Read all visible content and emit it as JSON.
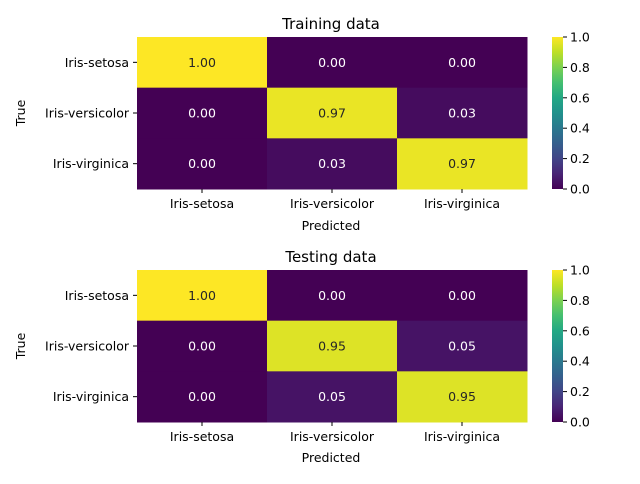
{
  "chart_data": [
    {
      "type": "heatmap",
      "title": "Training data",
      "xlabel": "Predicted",
      "ylabel": "True",
      "x_categories": [
        "Iris-setosa",
        "Iris-versicolor",
        "Iris-virginica"
      ],
      "y_categories": [
        "Iris-setosa",
        "Iris-versicolor",
        "Iris-virginica"
      ],
      "values": [
        [
          1.0,
          0.0,
          0.0
        ],
        [
          0.0,
          0.97,
          0.03
        ],
        [
          0.0,
          0.03,
          0.97
        ]
      ],
      "value_labels": [
        [
          "1.00",
          "0.00",
          "0.00"
        ],
        [
          "0.00",
          "0.97",
          "0.03"
        ],
        [
          "0.00",
          "0.03",
          "0.97"
        ]
      ],
      "colormap": "viridis",
      "colorbar": {
        "range": [
          0,
          1
        ],
        "ticks": [
          "0.0",
          "0.2",
          "0.4",
          "0.6",
          "0.8",
          "1.0"
        ]
      }
    },
    {
      "type": "heatmap",
      "title": "Testing data",
      "xlabel": "Predicted",
      "ylabel": "True",
      "x_categories": [
        "Iris-setosa",
        "Iris-versicolor",
        "Iris-virginica"
      ],
      "y_categories": [
        "Iris-setosa",
        "Iris-versicolor",
        "Iris-virginica"
      ],
      "values": [
        [
          1.0,
          0.0,
          0.0
        ],
        [
          0.0,
          0.95,
          0.05
        ],
        [
          0.0,
          0.05,
          0.95
        ]
      ],
      "value_labels": [
        [
          "1.00",
          "0.00",
          "0.00"
        ],
        [
          "0.00",
          "0.95",
          "0.05"
        ],
        [
          "0.00",
          "0.05",
          "0.95"
        ]
      ],
      "colormap": "viridis",
      "colorbar": {
        "range": [
          0,
          1
        ],
        "ticks": [
          "0.0",
          "0.2",
          "0.4",
          "0.6",
          "0.8",
          "1.0"
        ]
      }
    }
  ]
}
